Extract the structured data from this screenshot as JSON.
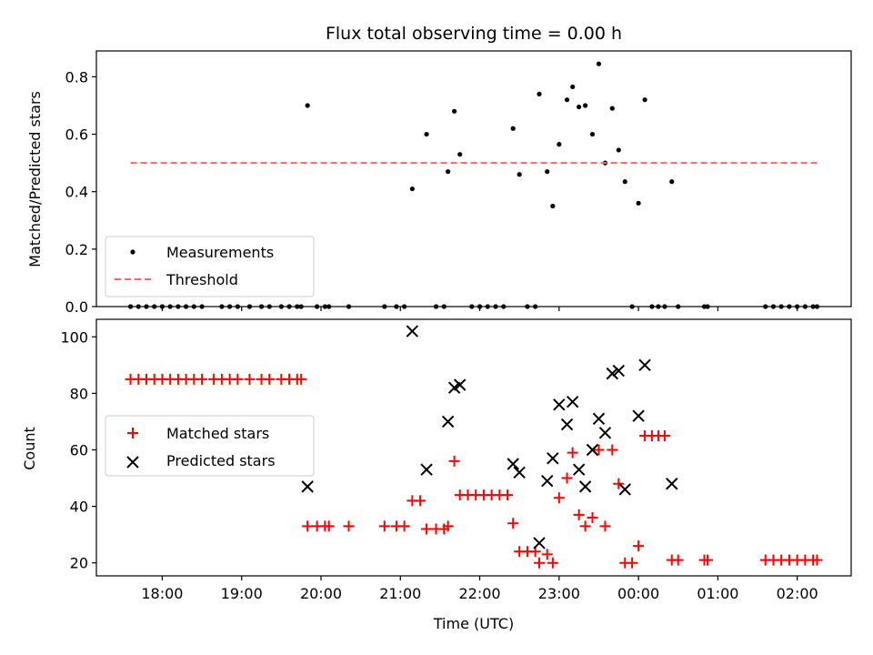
{
  "chart_data": [
    {
      "type": "scatter",
      "title": "Flux total observing time = 0.00 h",
      "xlabel": "",
      "ylabel": "Matched/Predicted stars",
      "ylim": [
        0,
        0.89
      ],
      "yticks": [
        0.0,
        0.2,
        0.4,
        0.6,
        0.8
      ],
      "ytick_labels": [
        "0.0",
        "0.2",
        "0.4",
        "0.6",
        "0.8"
      ],
      "x_unit": "hours (UTC, continuous past midnight)",
      "legend": {
        "placement": "lower-left",
        "entries": [
          "Measurements",
          "Threshold"
        ]
      },
      "series": [
        {
          "name": "Measurements",
          "color": "#000000",
          "marker": "dot",
          "points": [
            [
              17.6,
              0
            ],
            [
              17.7,
              0
            ],
            [
              17.8,
              0
            ],
            [
              17.9,
              0
            ],
            [
              18.0,
              0
            ],
            [
              18.1,
              0
            ],
            [
              18.2,
              0
            ],
            [
              18.3,
              0
            ],
            [
              18.4,
              0
            ],
            [
              18.5,
              0
            ],
            [
              18.75,
              0
            ],
            [
              18.85,
              0
            ],
            [
              18.95,
              0
            ],
            [
              19.1,
              0
            ],
            [
              19.25,
              0
            ],
            [
              19.35,
              0
            ],
            [
              19.5,
              0
            ],
            [
              19.6,
              0
            ],
            [
              19.7,
              0
            ],
            [
              19.75,
              0
            ],
            [
              19.83,
              0.7
            ],
            [
              19.95,
              0
            ],
            [
              20.05,
              0
            ],
            [
              20.1,
              0
            ],
            [
              20.35,
              0
            ],
            [
              20.8,
              0
            ],
            [
              20.95,
              0
            ],
            [
              21.05,
              0
            ],
            [
              21.15,
              0.41
            ],
            [
              21.33,
              0.6
            ],
            [
              21.45,
              0
            ],
            [
              21.55,
              0
            ],
            [
              21.6,
              0.47
            ],
            [
              21.68,
              0.68
            ],
            [
              21.75,
              0.53
            ],
            [
              21.9,
              0
            ],
            [
              22.0,
              0
            ],
            [
              22.1,
              0
            ],
            [
              22.2,
              0
            ],
            [
              22.3,
              0
            ],
            [
              22.42,
              0.62
            ],
            [
              22.5,
              0.46
            ],
            [
              22.6,
              0
            ],
            [
              22.7,
              0
            ],
            [
              22.75,
              0.74
            ],
            [
              22.85,
              0.47
            ],
            [
              22.92,
              0.35
            ],
            [
              23.0,
              0.565
            ],
            [
              23.1,
              0.72
            ],
            [
              23.17,
              0.765
            ],
            [
              23.25,
              0.695
            ],
            [
              23.33,
              0.7
            ],
            [
              23.42,
              0.6
            ],
            [
              23.5,
              0.845
            ],
            [
              23.58,
              0.5
            ],
            [
              23.67,
              0.69
            ],
            [
              23.75,
              0.545
            ],
            [
              23.83,
              0.435
            ],
            [
              23.92,
              0
            ],
            [
              24.0,
              0.36
            ],
            [
              24.08,
              0.72
            ],
            [
              24.17,
              0
            ],
            [
              24.25,
              0
            ],
            [
              24.33,
              0
            ],
            [
              24.42,
              0.435
            ],
            [
              24.5,
              0
            ],
            [
              24.83,
              0
            ],
            [
              24.87,
              0
            ],
            [
              25.6,
              0
            ],
            [
              25.7,
              0
            ],
            [
              25.8,
              0
            ],
            [
              25.9,
              0
            ],
            [
              26.0,
              0
            ],
            [
              26.1,
              0
            ],
            [
              26.2,
              0
            ],
            [
              26.25,
              0
            ]
          ]
        },
        {
          "name": "Threshold",
          "color": "#ff6666",
          "style": "dashed",
          "points": [
            [
              17.6,
              0.5
            ],
            [
              26.25,
              0.5
            ]
          ]
        }
      ]
    },
    {
      "type": "scatter",
      "title": "",
      "xlabel": "Time (UTC)",
      "ylabel": "Count",
      "xlim": [
        17.17,
        26.68
      ],
      "xticks": [
        18,
        19,
        20,
        21,
        22,
        23,
        24,
        25,
        26
      ],
      "xtick_labels": [
        "18:00",
        "19:00",
        "20:00",
        "21:00",
        "22:00",
        "23:00",
        "00:00",
        "01:00",
        "02:00"
      ],
      "ylim": [
        15.4,
        106.2
      ],
      "yticks": [
        20,
        40,
        60,
        80,
        100
      ],
      "ytick_labels": [
        "20",
        "40",
        "60",
        "80",
        "100"
      ],
      "legend": {
        "placement": "center-left",
        "entries": [
          "Matched stars",
          "Predicted stars"
        ]
      },
      "series": [
        {
          "name": "Matched stars",
          "color": "#ff0000",
          "marker": "plus",
          "points": [
            [
              17.6,
              85
            ],
            [
              17.7,
              85
            ],
            [
              17.8,
              85
            ],
            [
              17.9,
              85
            ],
            [
              18.0,
              85
            ],
            [
              18.1,
              85
            ],
            [
              18.2,
              85
            ],
            [
              18.3,
              85
            ],
            [
              18.4,
              85
            ],
            [
              18.5,
              85
            ],
            [
              18.65,
              85
            ],
            [
              18.75,
              85
            ],
            [
              18.85,
              85
            ],
            [
              18.95,
              85
            ],
            [
              19.1,
              85
            ],
            [
              19.25,
              85
            ],
            [
              19.35,
              85
            ],
            [
              19.5,
              85
            ],
            [
              19.6,
              85
            ],
            [
              19.7,
              85
            ],
            [
              19.75,
              85
            ],
            [
              19.83,
              33
            ],
            [
              19.95,
              33
            ],
            [
              20.05,
              33
            ],
            [
              20.1,
              33
            ],
            [
              20.35,
              33
            ],
            [
              20.8,
              33
            ],
            [
              20.95,
              33
            ],
            [
              21.05,
              33
            ],
            [
              21.15,
              42
            ],
            [
              21.25,
              42
            ],
            [
              21.33,
              32
            ],
            [
              21.45,
              32
            ],
            [
              21.55,
              32
            ],
            [
              21.6,
              33
            ],
            [
              21.68,
              56
            ],
            [
              21.75,
              44
            ],
            [
              21.85,
              44
            ],
            [
              21.95,
              44
            ],
            [
              22.05,
              44
            ],
            [
              22.15,
              44
            ],
            [
              22.25,
              44
            ],
            [
              22.35,
              44
            ],
            [
              22.42,
              34
            ],
            [
              22.5,
              24
            ],
            [
              22.6,
              24
            ],
            [
              22.7,
              24
            ],
            [
              22.75,
              20
            ],
            [
              22.85,
              23
            ],
            [
              22.92,
              20
            ],
            [
              23.0,
              43
            ],
            [
              23.1,
              50
            ],
            [
              23.17,
              59
            ],
            [
              23.25,
              37
            ],
            [
              23.33,
              33
            ],
            [
              23.42,
              36
            ],
            [
              23.5,
              60
            ],
            [
              23.58,
              33
            ],
            [
              23.67,
              60
            ],
            [
              23.75,
              48
            ],
            [
              23.83,
              20
            ],
            [
              23.92,
              20
            ],
            [
              24.0,
              26
            ],
            [
              24.08,
              65
            ],
            [
              24.17,
              65
            ],
            [
              24.25,
              65
            ],
            [
              24.33,
              65
            ],
            [
              24.42,
              21
            ],
            [
              24.5,
              21
            ],
            [
              24.83,
              21
            ],
            [
              24.87,
              21
            ],
            [
              25.6,
              21
            ],
            [
              25.7,
              21
            ],
            [
              25.8,
              21
            ],
            [
              25.9,
              21
            ],
            [
              26.0,
              21
            ],
            [
              26.1,
              21
            ],
            [
              26.2,
              21
            ],
            [
              26.25,
              21
            ]
          ]
        },
        {
          "name": "Predicted stars",
          "color": "#000000",
          "marker": "x",
          "points": [
            [
              19.83,
              47
            ],
            [
              21.15,
              102
            ],
            [
              21.33,
              53
            ],
            [
              21.6,
              70
            ],
            [
              21.68,
              82
            ],
            [
              21.75,
              83
            ],
            [
              22.42,
              55
            ],
            [
              22.5,
              52
            ],
            [
              22.75,
              27
            ],
            [
              22.85,
              49
            ],
            [
              22.92,
              57
            ],
            [
              23.0,
              76
            ],
            [
              23.1,
              69
            ],
            [
              23.17,
              77
            ],
            [
              23.25,
              53
            ],
            [
              23.33,
              47
            ],
            [
              23.42,
              60
            ],
            [
              23.5,
              71
            ],
            [
              23.58,
              66
            ],
            [
              23.67,
              87
            ],
            [
              23.75,
              88
            ],
            [
              23.83,
              46
            ],
            [
              24.0,
              72
            ],
            [
              24.08,
              90
            ],
            [
              24.42,
              48
            ]
          ]
        }
      ]
    }
  ]
}
